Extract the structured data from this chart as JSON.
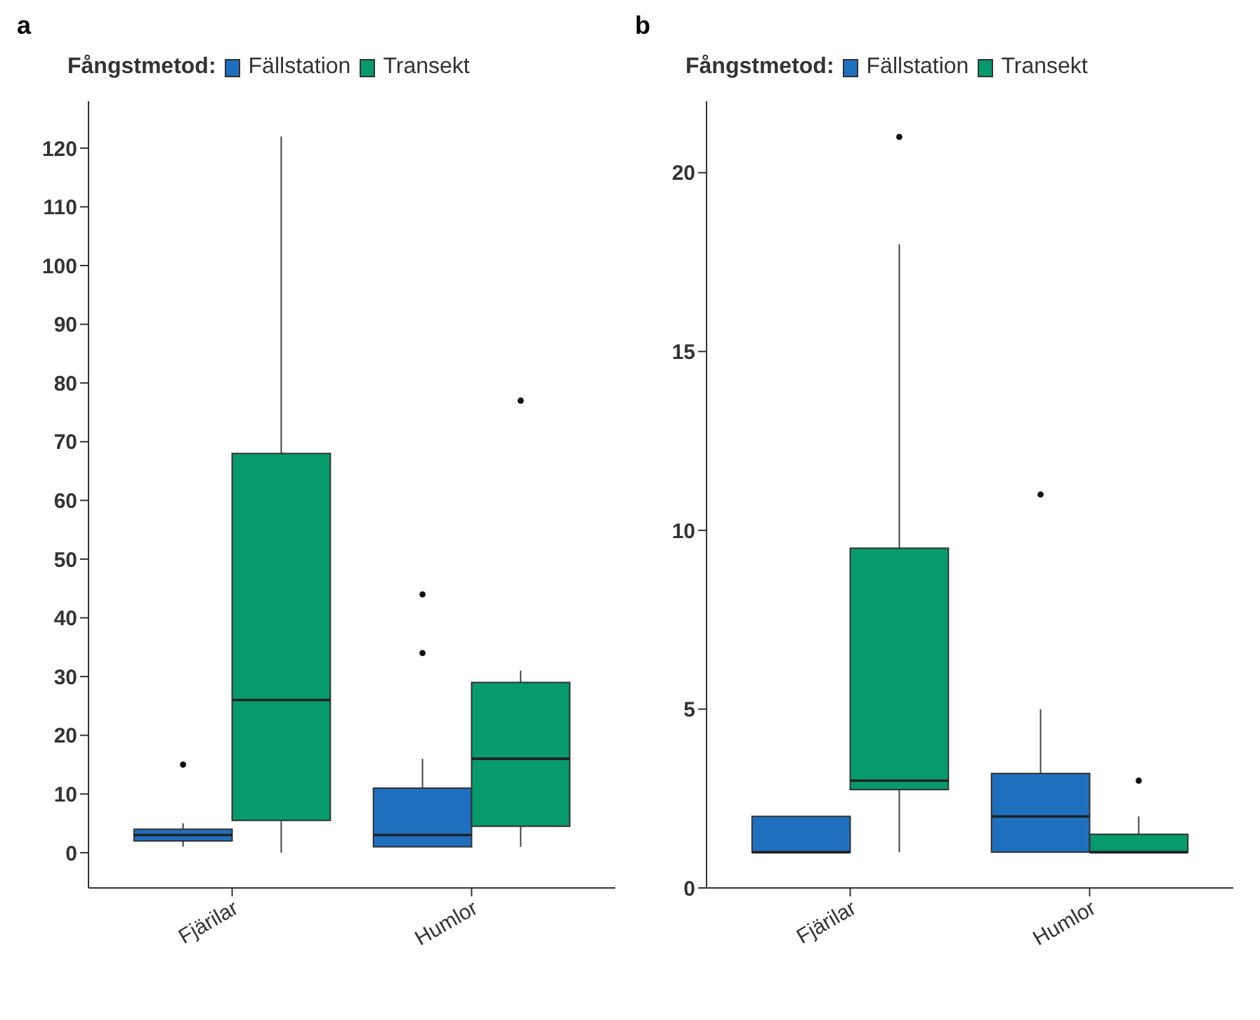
{
  "chart_data": [
    {
      "type": "box",
      "title": "a",
      "legend_title": "Fångstmetod:",
      "legend": "top",
      "categories": [
        "Fjärilar",
        "Humlor"
      ],
      "ylim": [
        -6,
        128
      ],
      "yticks": [
        0,
        10,
        20,
        30,
        40,
        50,
        60,
        70,
        80,
        90,
        100,
        110,
        120
      ],
      "series": [
        {
          "name": "Fällstation",
          "color": "#1f6fbf",
          "boxes": [
            {
              "low": 1,
              "q1": 2,
              "median": 3,
              "q3": 4,
              "high": 5,
              "outliers": [
                15
              ]
            },
            {
              "low": 1,
              "q1": 1,
              "median": 3,
              "q3": 11,
              "high": 16,
              "outliers": [
                34,
                44
              ]
            }
          ]
        },
        {
          "name": "Transekt",
          "color": "#079a6c",
          "boxes": [
            {
              "low": 0,
              "q1": 5.5,
              "median": 26,
              "q3": 68,
              "high": 122
            },
            {
              "low": 1,
              "q1": 4.5,
              "median": 16,
              "q3": 29,
              "high": 31,
              "outliers": [
                77
              ]
            }
          ]
        }
      ]
    },
    {
      "type": "box",
      "title": "b",
      "legend_title": "Fångstmetod:",
      "legend": "top",
      "categories": [
        "Fjärilar",
        "Humlor"
      ],
      "ylim": [
        0,
        22
      ],
      "yticks": [
        0,
        5,
        10,
        15,
        20
      ],
      "series": [
        {
          "name": "Fällstation",
          "color": "#1f6fbf",
          "boxes": [
            {
              "low": 1,
              "q1": 1,
              "median": 1,
              "q3": 2,
              "high": 2
            },
            {
              "low": 1,
              "q1": 1,
              "median": 2,
              "q3": 3.2,
              "high": 5,
              "outliers": [
                11
              ]
            }
          ]
        },
        {
          "name": "Transekt",
          "color": "#079a6c",
          "boxes": [
            {
              "low": 1,
              "q1": 2.75,
              "median": 3,
              "q3": 9.5,
              "high": 18,
              "outliers": [
                21
              ]
            },
            {
              "low": 1,
              "q1": 1,
              "median": 1,
              "q3": 1.5,
              "high": 2,
              "outliers": [
                3
              ]
            }
          ]
        }
      ]
    }
  ]
}
